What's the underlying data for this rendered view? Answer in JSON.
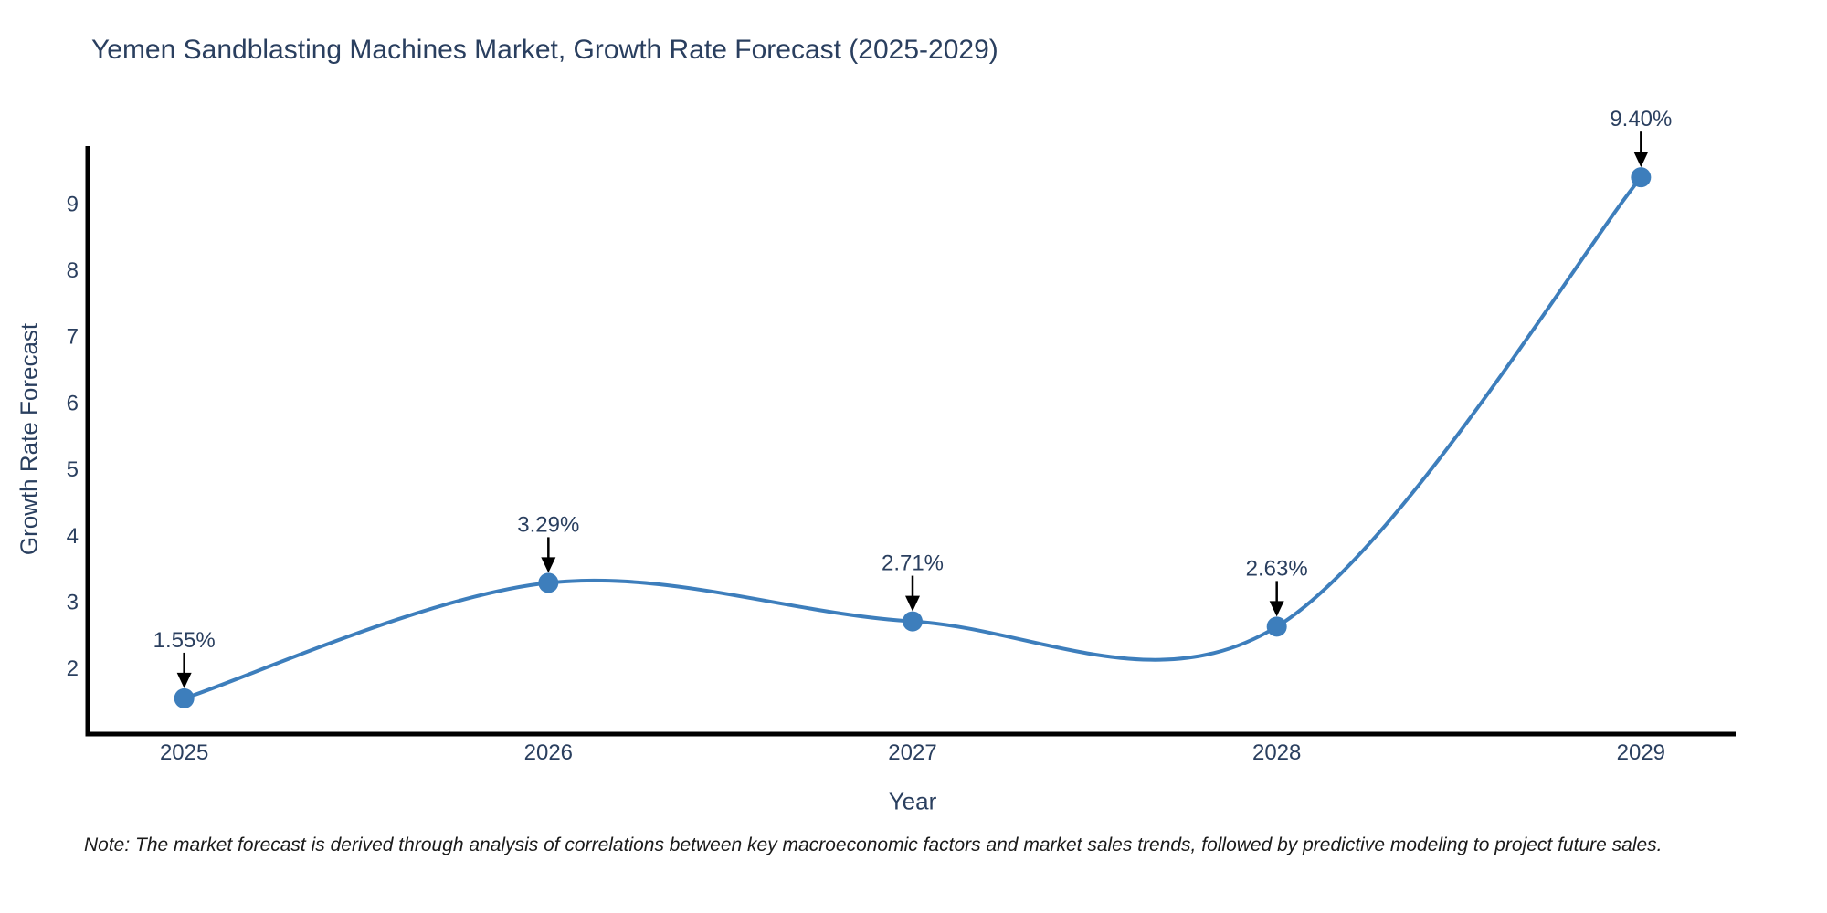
{
  "chart": {
    "title": "Yemen Sandblasting Machines Market, Growth Rate Forecast (2025-2029)",
    "xlabel": "Year",
    "ylabel": "Growth Rate Forecast",
    "note": "Note: The market forecast is derived through analysis of correlations between key macroeconomic factors and market sales trends, followed by predictive modeling to project future sales.",
    "colors": {
      "line": "#3d7ebc",
      "marker": "#3d7ebc",
      "axis_line": "#000000",
      "text": "#2a3f5f",
      "annotation_arrow": "#000000",
      "background": "#ffffff"
    }
  },
  "chart_data": {
    "type": "line",
    "title": "Yemen Sandblasting Machines Market, Growth Rate Forecast (2025-2029)",
    "xlabel": "Year",
    "ylabel": "Growth Rate Forecast",
    "x": [
      2025,
      2026,
      2027,
      2028,
      2029
    ],
    "values": [
      1.55,
      3.29,
      2.71,
      2.63,
      9.4
    ],
    "point_labels": [
      "1.55%",
      "3.29%",
      "2.71%",
      "2.63%",
      "9.40%"
    ],
    "series_name": "Growth Rate Forecast",
    "x_tick_labels": [
      "2025",
      "2026",
      "2027",
      "2028",
      "2029"
    ],
    "y_ticks": [
      2,
      3,
      4,
      5,
      6,
      7,
      8,
      9
    ],
    "y_tick_labels": [
      "2",
      "3",
      "4",
      "5",
      "6",
      "7",
      "8",
      "9"
    ],
    "xlim": [
      2024.74,
      2029.26
    ],
    "ylim": [
      1.04,
      9.87
    ],
    "grid": false,
    "legend": false,
    "line_shape": "spline",
    "markers": true,
    "annotations": "percent value labels with black down-arrows above each data point"
  }
}
